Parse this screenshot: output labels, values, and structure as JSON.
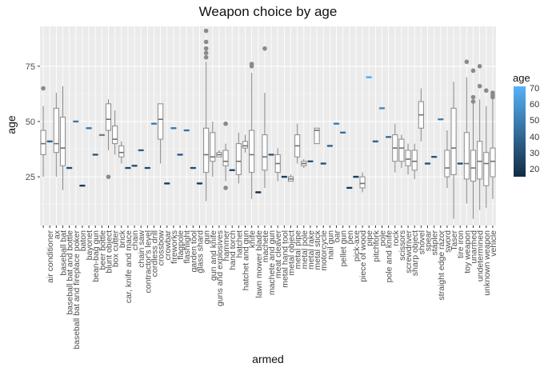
{
  "chart_data": {
    "type": "boxplot",
    "title": "Weapon choice by age",
    "xlabel": "armed",
    "ylabel": "age",
    "ylim": [
      3,
      93
    ],
    "yticks": [
      25,
      50,
      75
    ],
    "grid": true,
    "legend": {
      "title": "age",
      "placement": "right",
      "type": "colorbar",
      "ticks": [
        20,
        30,
        40,
        50,
        60,
        70
      ],
      "range": [
        16,
        72
      ],
      "low_color": "#132b43",
      "high_color": "#56b1f7"
    },
    "categories": [
      "",
      "air conditioner",
      "ax",
      "baseball bat",
      "baseball bat and bottle",
      "baseball bat and fireplace poker",
      "baton",
      "bayonet",
      "bean-bag gun",
      "beer bottle",
      "blunt object",
      "box cutter",
      "brick",
      "car, knife and mace",
      "chain",
      "chain saw",
      "contractor's level",
      "cordless drill",
      "crossbow",
      "crowbar",
      "fireworks",
      "flagpole",
      "flashlight",
      "garden tool",
      "glass shard",
      "gun",
      "gun and knife",
      "guns and explosives",
      "hammer",
      "hand torch",
      "hatchet",
      "hatchet and gun",
      "knife",
      "lawn mower blade",
      "machete",
      "machete and gun",
      "meat cleaver",
      "metal hand tool",
      "metal object",
      "metal pipe",
      "metal pole",
      "metal rake",
      "metal stick",
      "motorcycle",
      "nail gun",
      "oar",
      "pellet gun",
      "pen",
      "pick-axe",
      "piece of wood",
      "pipe",
      "pitchfork",
      "pole",
      "pole and knife",
      "rock",
      "scissors",
      "screwdriver",
      "sharp object",
      "shovel",
      "spear",
      "stapler",
      "straight edge razor",
      "sword",
      "Taser",
      "tire iron",
      "toy weapon",
      "unarmed",
      "undetermined",
      "unknown weapon",
      "vehicle"
    ],
    "series": [
      {
        "category": "",
        "min": 25,
        "q1": 35,
        "median": 40,
        "q3": 46,
        "max": 57,
        "outliers": [
          65
        ]
      },
      {
        "category": "air conditioner",
        "value": 41
      },
      {
        "category": "ax",
        "min": 25,
        "q1": 36,
        "median": 40,
        "q3": 56,
        "max": 63,
        "outliers": []
      },
      {
        "category": "baseball bat",
        "min": 19,
        "q1": 30,
        "median": 38,
        "q3": 52,
        "max": 66,
        "outliers": []
      },
      {
        "category": "baseball bat and bottle",
        "value": 29
      },
      {
        "category": "baseball bat and fireplace poker",
        "value": 50
      },
      {
        "category": "baton",
        "value": 21
      },
      {
        "category": "bayonet",
        "value": 47
      },
      {
        "category": "bean-bag gun",
        "value": 35
      },
      {
        "category": "beer bottle",
        "min": 44,
        "q1": 44,
        "median": 44,
        "q3": 44,
        "max": 44,
        "outliers": []
      },
      {
        "category": "blunt object",
        "min": 37,
        "q1": 46,
        "median": 51,
        "q3": 58,
        "max": 60,
        "outliers": [
          25
        ]
      },
      {
        "category": "box cutter",
        "min": 35,
        "q1": 40,
        "median": 42,
        "q3": 48,
        "max": 55,
        "outliers": []
      },
      {
        "category": "brick",
        "min": 31,
        "q1": 34,
        "median": 36,
        "q3": 39,
        "max": 41,
        "outliers": []
      },
      {
        "category": "car, knife and mace",
        "value": 29
      },
      {
        "category": "chain",
        "value": 30
      },
      {
        "category": "chain saw",
        "value": 37
      },
      {
        "category": "contractor's level",
        "value": 29
      },
      {
        "category": "cordless drill",
        "value": 49
      },
      {
        "category": "crossbow",
        "min": 31,
        "q1": 42,
        "median": 51,
        "q3": 58,
        "max": 58,
        "outliers": []
      },
      {
        "category": "crowbar",
        "value": 22
      },
      {
        "category": "fireworks",
        "value": 47
      },
      {
        "category": "flagpole",
        "value": 35
      },
      {
        "category": "flashlight",
        "value": 46
      },
      {
        "category": "garden tool",
        "value": 29
      },
      {
        "category": "glass shard",
        "value": 22
      },
      {
        "category": "gun",
        "min": 14,
        "q1": 27,
        "median": 35,
        "q3": 47,
        "max": 77,
        "outliers": [
          79,
          81,
          83,
          86,
          91
        ]
      },
      {
        "category": "gun and knife",
        "min": 25,
        "q1": 32,
        "median": 34,
        "q3": 45,
        "max": 50,
        "outliers": []
      },
      {
        "category": "guns and explosives",
        "min": 34,
        "q1": 34,
        "median": 35,
        "q3": 36,
        "max": 37,
        "outliers": []
      },
      {
        "category": "hammer",
        "min": 23,
        "q1": 30,
        "median": 32,
        "q3": 37,
        "max": 40,
        "outliers": [
          20,
          49
        ]
      },
      {
        "category": "hand torch",
        "value": 28
      },
      {
        "category": "hatchet",
        "min": 22,
        "q1": 26,
        "median": 32,
        "q3": 40,
        "max": 45,
        "outliers": []
      },
      {
        "category": "hatchet and gun",
        "min": 36,
        "q1": 38,
        "median": 39,
        "q3": 41,
        "max": 44,
        "outliers": []
      },
      {
        "category": "knife",
        "min": 15,
        "q1": 27,
        "median": 35,
        "q3": 46,
        "max": 72,
        "outliers": [
          75,
          76
        ]
      },
      {
        "category": "lawn mower blade",
        "value": 18
      },
      {
        "category": "machete",
        "min": 20,
        "q1": 28,
        "median": 34,
        "q3": 44,
        "max": 63,
        "outliers": [
          83
        ]
      },
      {
        "category": "machete and gun",
        "value": 35
      },
      {
        "category": "meat cleaver",
        "min": 23,
        "q1": 27,
        "median": 31,
        "q3": 35,
        "max": 38,
        "outliers": []
      },
      {
        "category": "metal hand tool",
        "value": 25
      },
      {
        "category": "metal object",
        "min": 23,
        "q1": 23,
        "median": 24,
        "q3": 25,
        "max": 26,
        "outliers": []
      },
      {
        "category": "metal pipe",
        "min": 31,
        "q1": 34,
        "median": 39,
        "q3": 44,
        "max": 49,
        "outliers": []
      },
      {
        "category": "metal pole",
        "min": 29,
        "q1": 30,
        "median": 31,
        "q3": 32,
        "max": 33,
        "outliers": []
      },
      {
        "category": "metal rake",
        "value": 32
      },
      {
        "category": "metal stick",
        "min": 40,
        "q1": 40,
        "median": 46,
        "q3": 47,
        "max": 47,
        "outliers": []
      },
      {
        "category": "motorcycle",
        "value": 31
      },
      {
        "category": "nail gun",
        "value": 39
      },
      {
        "category": "oar",
        "value": 49
      },
      {
        "category": "pellet gun",
        "value": 45
      },
      {
        "category": "pen",
        "value": 20
      },
      {
        "category": "pick-axe",
        "value": 25
      },
      {
        "category": "piece of wood",
        "min": 18,
        "q1": 20,
        "median": 22,
        "q3": 25,
        "max": 27,
        "outliers": []
      },
      {
        "category": "pipe",
        "value": 70
      },
      {
        "category": "pitchfork",
        "value": 41
      },
      {
        "category": "pole",
        "value": 56
      },
      {
        "category": "pole and knife",
        "value": 43
      },
      {
        "category": "rock",
        "min": 27,
        "q1": 32,
        "median": 38,
        "q3": 44,
        "max": 49,
        "outliers": []
      },
      {
        "category": "scissors",
        "min": 29,
        "q1": 32,
        "median": 38,
        "q3": 42,
        "max": 44,
        "outliers": []
      },
      {
        "category": "screwdriver",
        "min": 26,
        "q1": 30,
        "median": 33,
        "q3": 37,
        "max": 40,
        "outliers": []
      },
      {
        "category": "sharp object",
        "min": 24,
        "q1": 28,
        "median": 32,
        "q3": 37,
        "max": 40,
        "outliers": []
      },
      {
        "category": "shovel",
        "min": 41,
        "q1": 47,
        "median": 53,
        "q3": 59,
        "max": 65,
        "outliers": []
      },
      {
        "category": "spear",
        "value": 31
      },
      {
        "category": "stapler",
        "value": 34
      },
      {
        "category": "straight edge razor",
        "value": 51
      },
      {
        "category": "sword",
        "min": 20,
        "q1": 25,
        "median": 29,
        "q3": 37,
        "max": 46,
        "outliers": []
      },
      {
        "category": "Taser",
        "min": 6,
        "q1": 26,
        "median": 38,
        "q3": 56,
        "max": 68,
        "outliers": []
      },
      {
        "category": "tire iron",
        "value": 31
      },
      {
        "category": "toy weapon",
        "min": 13,
        "q1": 24,
        "median": 31,
        "q3": 45,
        "max": 70,
        "outliers": [
          77
        ]
      },
      {
        "category": "unarmed",
        "min": 6,
        "q1": 23,
        "median": 29,
        "q3": 37,
        "max": 58,
        "outliers": [
          59,
          61,
          73
        ]
      },
      {
        "category": "undetermined",
        "min": 10,
        "q1": 24,
        "median": 32,
        "q3": 41,
        "max": 60,
        "outliers": [
          66,
          75
        ]
      },
      {
        "category": "unknown weapon",
        "min": 11,
        "q1": 21,
        "median": 31,
        "q3": 36,
        "max": 57,
        "outliers": [
          64
        ]
      },
      {
        "category": "vehicle",
        "min": 15,
        "q1": 25,
        "median": 32,
        "q3": 38,
        "max": 60,
        "outliers": [
          61,
          62,
          63
        ]
      }
    ]
  }
}
